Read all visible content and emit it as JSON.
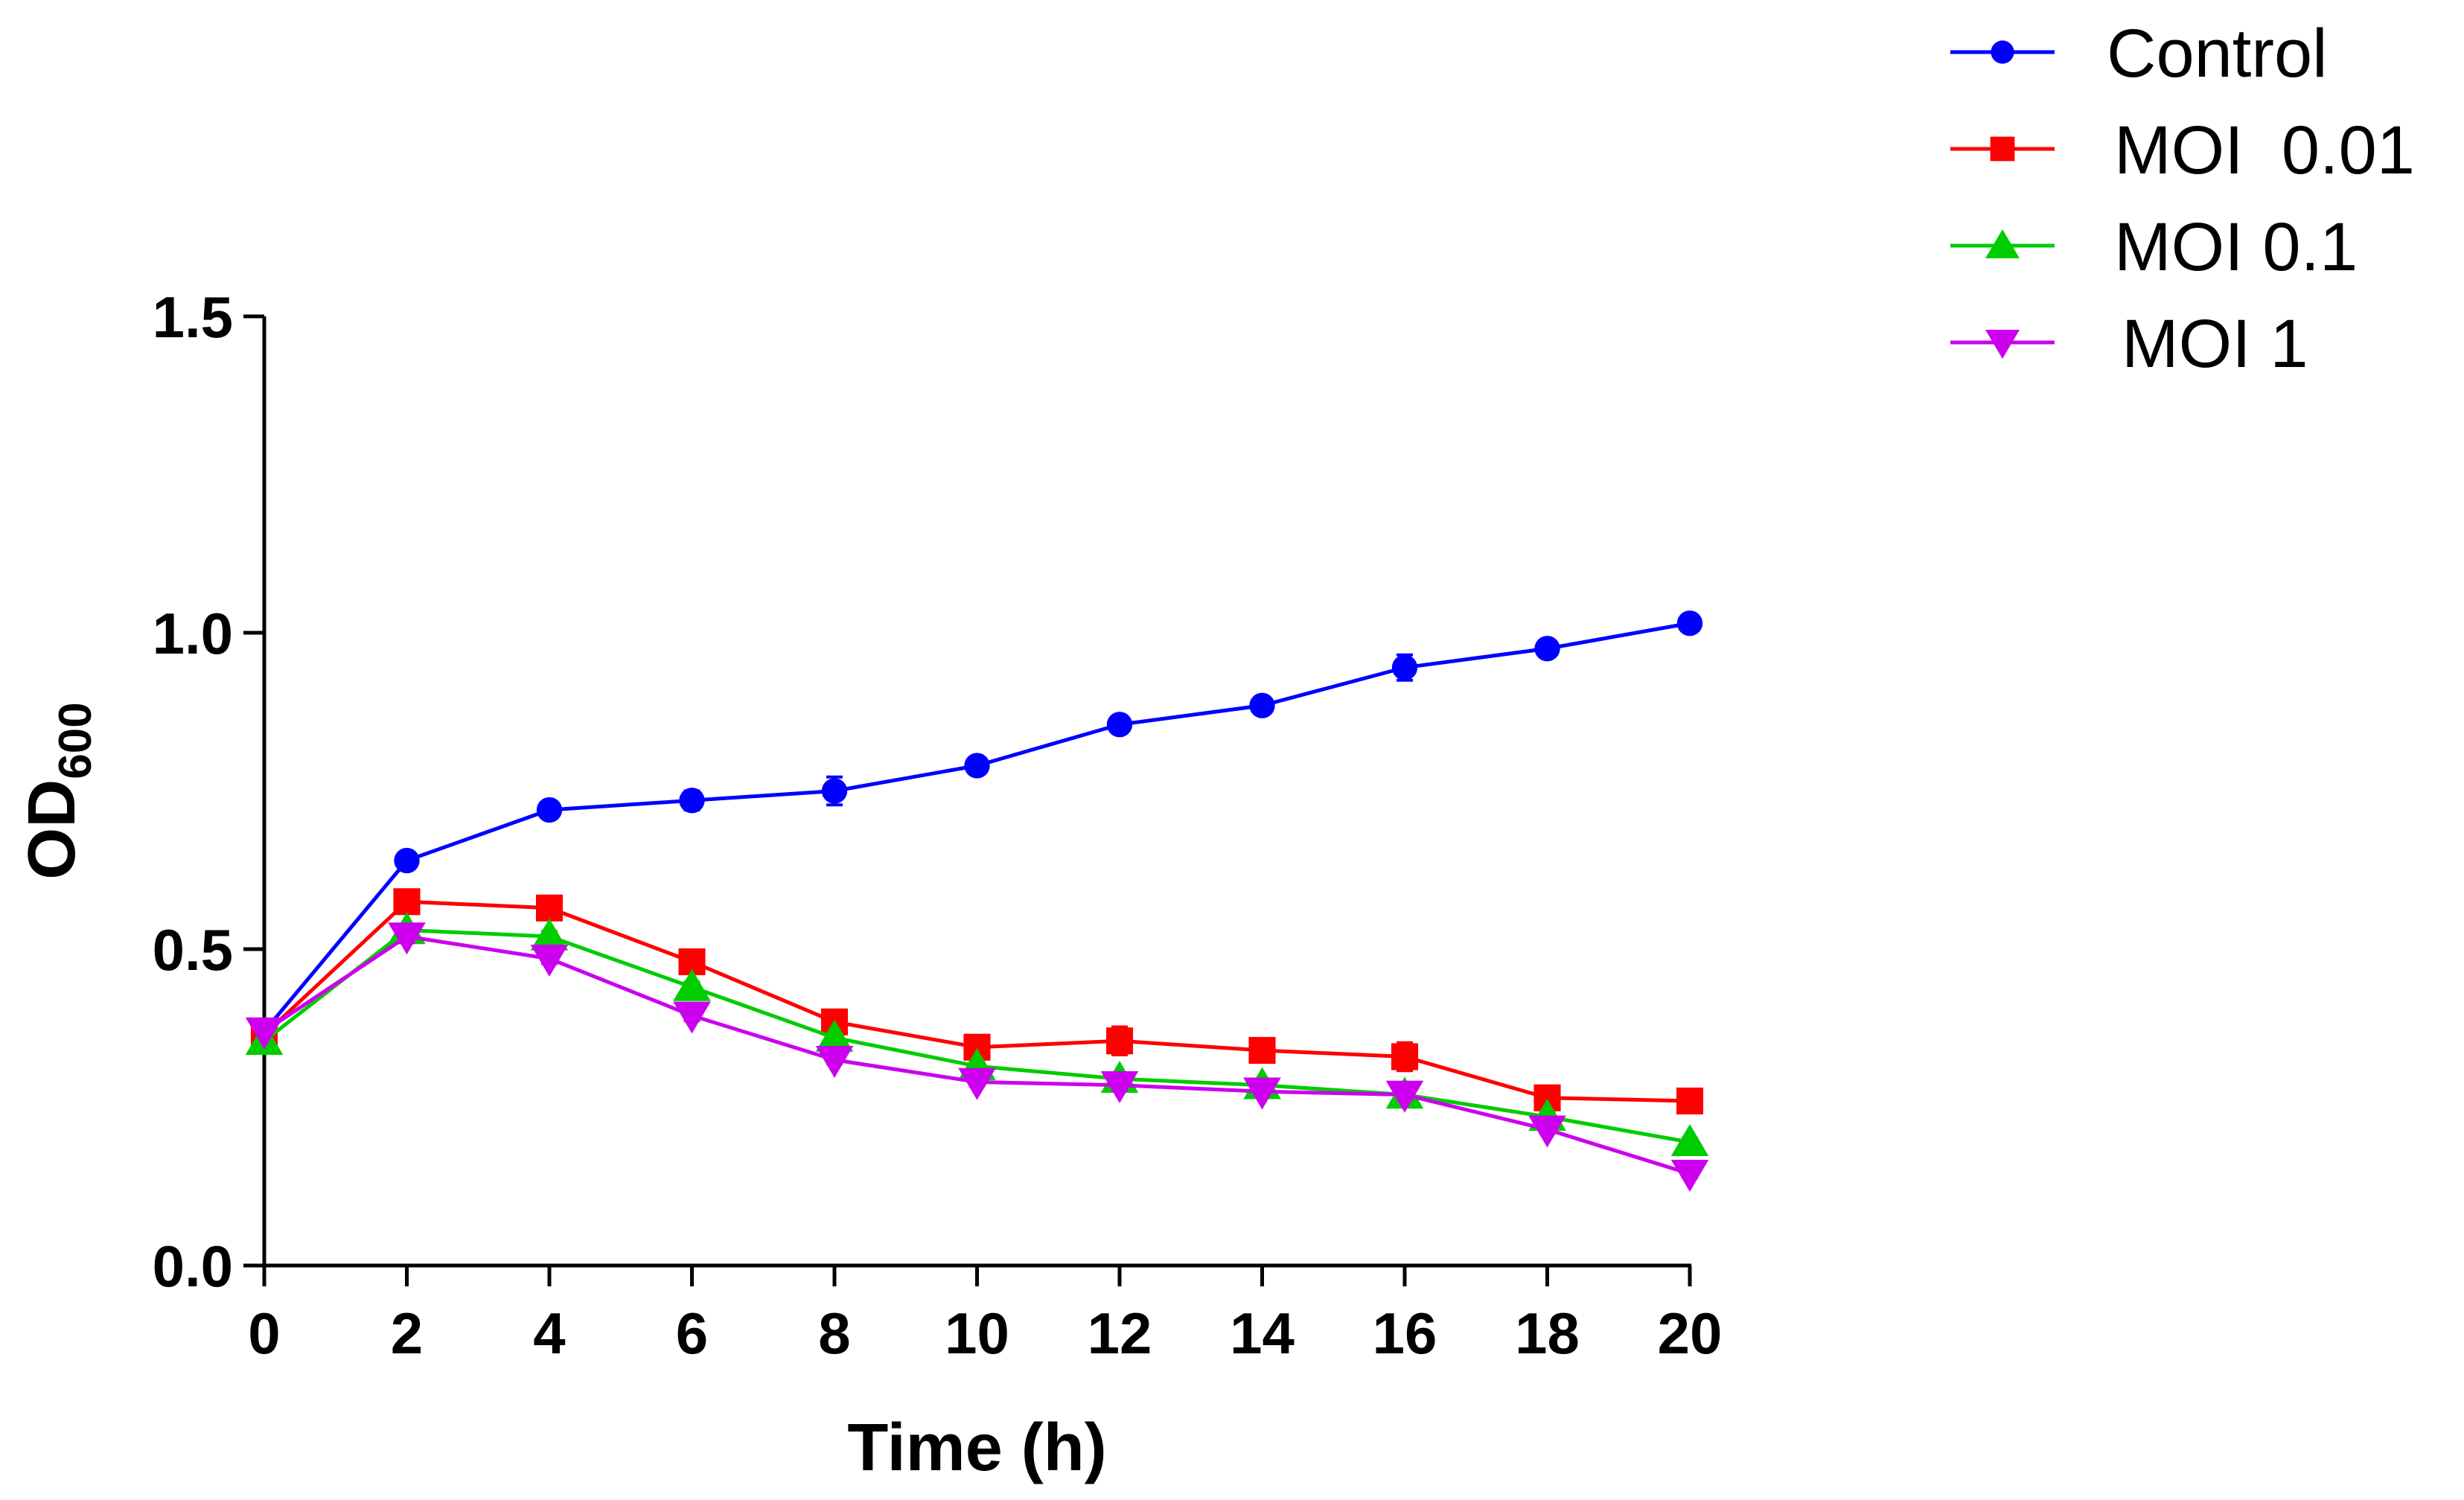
{
  "chart_data": {
    "type": "line",
    "title": "",
    "xlabel": "Time (h)",
    "ylabel_main": "OD",
    "ylabel_sub": "600",
    "xlim": [
      0,
      20
    ],
    "ylim": [
      0,
      1.5
    ],
    "xticks": [
      0,
      2,
      4,
      6,
      8,
      10,
      12,
      14,
      16,
      18,
      20
    ],
    "xtick_labels": [
      "0",
      "2",
      "4",
      "6",
      "8",
      "10",
      "12",
      "14",
      "16",
      "18",
      "20"
    ],
    "yticks": [
      0,
      0.5,
      1.0,
      1.5
    ],
    "ytick_labels": [
      "0.0",
      "0.5",
      "1.0",
      "1.5"
    ],
    "grid": false,
    "legend_position": "top-right",
    "x": [
      0,
      2,
      4,
      6,
      8,
      10,
      12,
      14,
      16,
      18,
      20
    ],
    "series": [
      {
        "name": "Control",
        "color": "#0000ff",
        "marker": "circle",
        "values": [
          0.37,
          0.64,
          0.72,
          0.735,
          0.75,
          0.79,
          0.855,
          0.885,
          0.945,
          0.975,
          1.015
        ],
        "errors": [
          0.006,
          0.012,
          0.008,
          0.015,
          0.022,
          0.008,
          0.008,
          0.008,
          0.02,
          0.012,
          0.008
        ]
      },
      {
        "name": "MOI  0.01",
        "color": "#ff0000",
        "marker": "square",
        "values": [
          0.365,
          0.575,
          0.565,
          0.48,
          0.385,
          0.345,
          0.355,
          0.34,
          0.33,
          0.265,
          0.26
        ],
        "errors": [
          0.006,
          0.01,
          0.008,
          0.01,
          0.01,
          0.015,
          0.022,
          0.01,
          0.022,
          0.008,
          0.006
        ]
      },
      {
        "name": "MOI 0.1",
        "color": "#00cc00",
        "marker": "triangle-up",
        "values": [
          0.355,
          0.53,
          0.52,
          0.44,
          0.36,
          0.315,
          0.295,
          0.285,
          0.27,
          0.235,
          0.195
        ],
        "errors": [
          0.006,
          0.008,
          0.008,
          0.008,
          0.006,
          0.006,
          0.008,
          0.006,
          0.01,
          0.006,
          0.006
        ]
      },
      {
        "name": "MOI 1",
        "color": "#cc00ee",
        "marker": "triangle-down",
        "values": [
          0.37,
          0.52,
          0.485,
          0.395,
          0.325,
          0.29,
          0.285,
          0.275,
          0.27,
          0.215,
          0.145
        ],
        "errors": [
          0.006,
          0.01,
          0.008,
          0.008,
          0.006,
          0.006,
          0.008,
          0.006,
          0.008,
          0.006,
          0.006
        ]
      }
    ]
  }
}
